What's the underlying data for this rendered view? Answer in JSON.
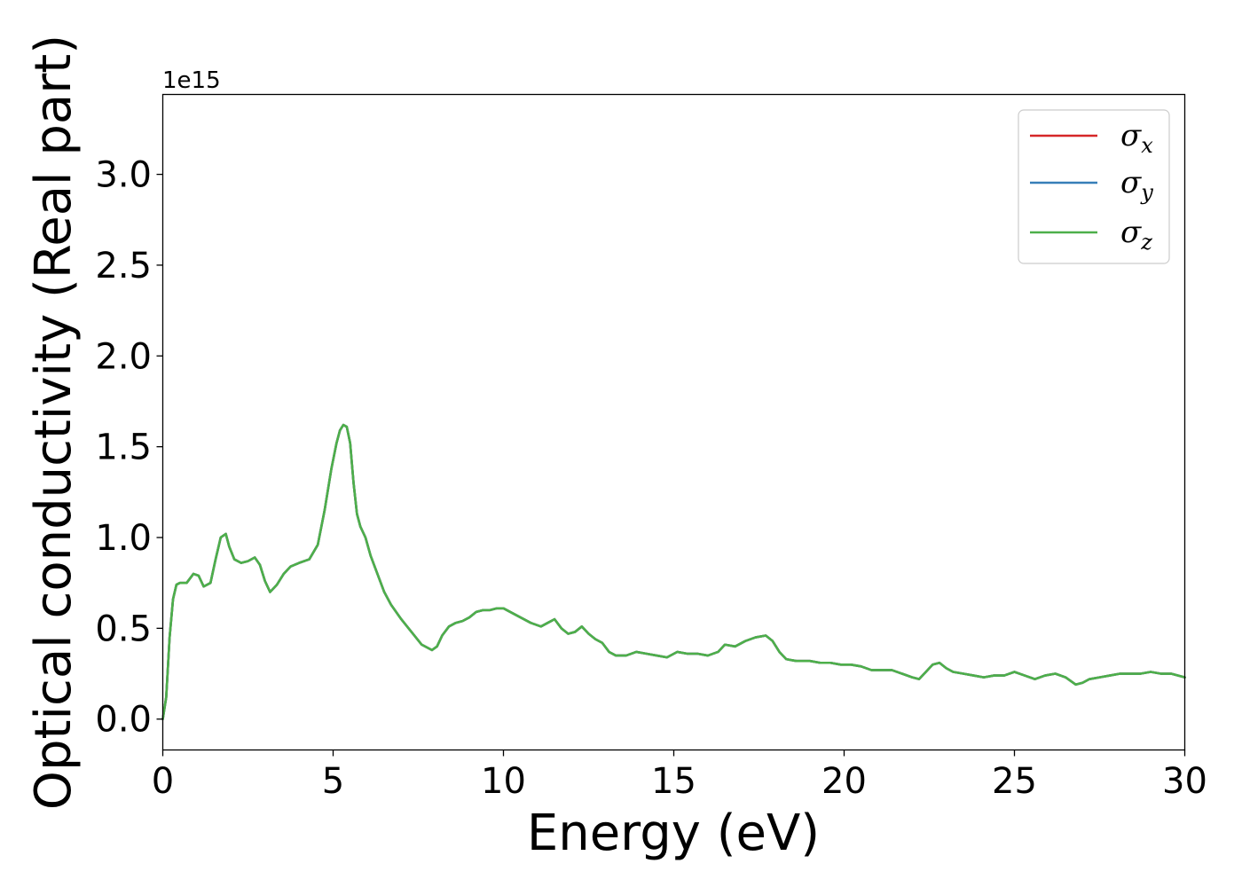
{
  "chart_data": {
    "type": "line",
    "xlabel": "Energy (eV)",
    "ylabel": "Optical conductivity (Real part)",
    "y_offset_label": "1e15",
    "xlim": [
      0,
      30
    ],
    "ylim": [
      -0.17,
      3.44
    ],
    "xticks": [
      0,
      5,
      10,
      15,
      20,
      25,
      30
    ],
    "xtick_labels": [
      "0",
      "5",
      "10",
      "15",
      "20",
      "25",
      "30"
    ],
    "yticks": [
      0.0,
      0.5,
      1.0,
      1.5,
      2.0,
      2.5,
      3.0
    ],
    "ytick_labels": [
      "0.0",
      "0.5",
      "1.0",
      "1.5",
      "2.0",
      "2.5",
      "3.0"
    ],
    "grid": false,
    "legend_position": "top-right",
    "x": [
      0,
      0.1,
      0.2,
      0.3,
      0.4,
      0.5,
      0.7,
      0.9,
      1.05,
      1.2,
      1.4,
      1.55,
      1.7,
      1.85,
      1.95,
      2.1,
      2.3,
      2.5,
      2.7,
      2.85,
      3.0,
      3.15,
      3.35,
      3.55,
      3.75,
      4.0,
      4.3,
      4.55,
      4.75,
      4.95,
      5.1,
      5.2,
      5.3,
      5.4,
      5.5,
      5.6,
      5.7,
      5.8,
      5.95,
      6.1,
      6.3,
      6.5,
      6.7,
      7.0,
      7.3,
      7.6,
      7.9,
      8.05,
      8.2,
      8.4,
      8.6,
      8.8,
      9.0,
      9.2,
      9.4,
      9.6,
      9.8,
      10.0,
      10.2,
      10.5,
      10.8,
      11.1,
      11.3,
      11.5,
      11.7,
      11.9,
      12.1,
      12.3,
      12.5,
      12.7,
      12.9,
      13.1,
      13.3,
      13.6,
      13.9,
      14.2,
      14.5,
      14.8,
      15.1,
      15.4,
      15.7,
      16.0,
      16.3,
      16.5,
      16.8,
      17.1,
      17.4,
      17.7,
      17.9,
      18.1,
      18.3,
      18.6,
      19.0,
      19.3,
      19.6,
      19.9,
      20.2,
      20.5,
      20.8,
      21.1,
      21.4,
      21.7,
      22.0,
      22.2,
      22.4,
      22.6,
      22.8,
      23.0,
      23.2,
      23.5,
      23.8,
      24.1,
      24.4,
      24.7,
      25.0,
      25.3,
      25.6,
      25.9,
      26.2,
      26.5,
      26.8,
      27.0,
      27.2,
      27.5,
      27.8,
      28.1,
      28.4,
      28.7,
      29.0,
      29.3,
      29.6,
      30.0
    ],
    "series": [
      {
        "name": "σ_x",
        "label_base": "σ",
        "label_sub": "x",
        "color": "#d62728",
        "y": [
          0.0,
          0.12,
          0.45,
          0.66,
          0.74,
          0.75,
          0.75,
          0.8,
          0.79,
          0.73,
          0.75,
          0.88,
          1.0,
          1.02,
          0.95,
          0.88,
          0.86,
          0.87,
          0.89,
          0.85,
          0.76,
          0.7,
          0.74,
          0.8,
          0.84,
          0.86,
          0.88,
          0.96,
          1.15,
          1.38,
          1.52,
          1.59,
          1.62,
          1.61,
          1.52,
          1.3,
          1.13,
          1.06,
          1.0,
          0.9,
          0.8,
          0.7,
          0.63,
          0.55,
          0.48,
          0.41,
          0.38,
          0.4,
          0.46,
          0.51,
          0.53,
          0.54,
          0.56,
          0.59,
          0.6,
          0.6,
          0.61,
          0.61,
          0.59,
          0.56,
          0.53,
          0.51,
          0.53,
          0.55,
          0.5,
          0.47,
          0.48,
          0.51,
          0.47,
          0.44,
          0.42,
          0.37,
          0.35,
          0.35,
          0.37,
          0.36,
          0.35,
          0.34,
          0.37,
          0.36,
          0.36,
          0.35,
          0.37,
          0.41,
          0.4,
          0.43,
          0.45,
          0.46,
          0.43,
          0.37,
          0.33,
          0.32,
          0.32,
          0.31,
          0.31,
          0.3,
          0.3,
          0.29,
          0.27,
          0.27,
          0.27,
          0.25,
          0.23,
          0.22,
          0.26,
          0.3,
          0.31,
          0.28,
          0.26,
          0.25,
          0.24,
          0.23,
          0.24,
          0.24,
          0.26,
          0.24,
          0.22,
          0.24,
          0.25,
          0.23,
          0.19,
          0.2,
          0.22,
          0.23,
          0.24,
          0.25,
          0.25,
          0.25,
          0.26,
          0.25,
          0.25,
          0.23
        ]
      },
      {
        "name": "σ_y",
        "label_base": "σ",
        "label_sub": "y",
        "color": "#377eb8",
        "y": [
          0.0,
          0.12,
          0.45,
          0.66,
          0.74,
          0.75,
          0.75,
          0.8,
          0.79,
          0.73,
          0.75,
          0.88,
          1.0,
          1.02,
          0.95,
          0.88,
          0.86,
          0.87,
          0.89,
          0.85,
          0.76,
          0.7,
          0.74,
          0.8,
          0.84,
          0.86,
          0.88,
          0.96,
          1.15,
          1.38,
          1.52,
          1.59,
          1.62,
          1.61,
          1.52,
          1.3,
          1.13,
          1.06,
          1.0,
          0.9,
          0.8,
          0.7,
          0.63,
          0.55,
          0.48,
          0.41,
          0.38,
          0.4,
          0.46,
          0.51,
          0.53,
          0.54,
          0.56,
          0.59,
          0.6,
          0.6,
          0.61,
          0.61,
          0.59,
          0.56,
          0.53,
          0.51,
          0.53,
          0.55,
          0.5,
          0.47,
          0.48,
          0.51,
          0.47,
          0.44,
          0.42,
          0.37,
          0.35,
          0.35,
          0.37,
          0.36,
          0.35,
          0.34,
          0.37,
          0.36,
          0.36,
          0.35,
          0.37,
          0.41,
          0.4,
          0.43,
          0.45,
          0.46,
          0.43,
          0.37,
          0.33,
          0.32,
          0.32,
          0.31,
          0.31,
          0.3,
          0.3,
          0.29,
          0.27,
          0.27,
          0.27,
          0.25,
          0.23,
          0.22,
          0.26,
          0.3,
          0.31,
          0.28,
          0.26,
          0.25,
          0.24,
          0.23,
          0.24,
          0.24,
          0.26,
          0.24,
          0.22,
          0.24,
          0.25,
          0.23,
          0.19,
          0.2,
          0.22,
          0.23,
          0.24,
          0.25,
          0.25,
          0.25,
          0.26,
          0.25,
          0.25,
          0.23
        ]
      },
      {
        "name": "σ_z",
        "label_base": "σ",
        "label_sub": "z",
        "color": "#4daf4a",
        "y": [
          0.0,
          0.12,
          0.45,
          0.66,
          0.74,
          0.75,
          0.75,
          0.8,
          0.79,
          0.73,
          0.75,
          0.88,
          1.0,
          1.02,
          0.95,
          0.88,
          0.86,
          0.87,
          0.89,
          0.85,
          0.76,
          0.7,
          0.74,
          0.8,
          0.84,
          0.86,
          0.88,
          0.96,
          1.15,
          1.38,
          1.52,
          1.59,
          1.62,
          1.61,
          1.52,
          1.3,
          1.13,
          1.06,
          1.0,
          0.9,
          0.8,
          0.7,
          0.63,
          0.55,
          0.48,
          0.41,
          0.38,
          0.4,
          0.46,
          0.51,
          0.53,
          0.54,
          0.56,
          0.59,
          0.6,
          0.6,
          0.61,
          0.61,
          0.59,
          0.56,
          0.53,
          0.51,
          0.53,
          0.55,
          0.5,
          0.47,
          0.48,
          0.51,
          0.47,
          0.44,
          0.42,
          0.37,
          0.35,
          0.35,
          0.37,
          0.36,
          0.35,
          0.34,
          0.37,
          0.36,
          0.36,
          0.35,
          0.37,
          0.41,
          0.4,
          0.43,
          0.45,
          0.46,
          0.43,
          0.37,
          0.33,
          0.32,
          0.32,
          0.31,
          0.31,
          0.3,
          0.3,
          0.29,
          0.27,
          0.27,
          0.27,
          0.25,
          0.23,
          0.22,
          0.26,
          0.3,
          0.31,
          0.28,
          0.26,
          0.25,
          0.24,
          0.23,
          0.24,
          0.24,
          0.26,
          0.24,
          0.22,
          0.24,
          0.25,
          0.23,
          0.19,
          0.2,
          0.22,
          0.23,
          0.24,
          0.25,
          0.25,
          0.25,
          0.26,
          0.25,
          0.25,
          0.23
        ]
      }
    ]
  }
}
